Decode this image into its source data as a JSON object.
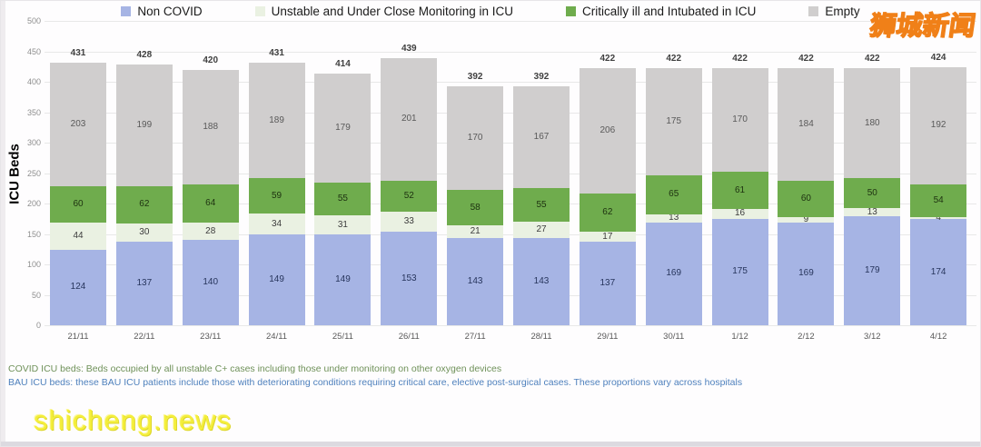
{
  "legend": {
    "items": [
      {
        "label": "Non COVID"
      },
      {
        "label": "Unstable and Under Close Monitoring in ICU"
      },
      {
        "label": "Critically ill and Intubated in ICU"
      },
      {
        "label": "Empty"
      }
    ]
  },
  "footer": {
    "line1": "COVID ICU beds: Beds occupied by all unstable C+ cases including those under monitoring on other oxygen devices",
    "line2": "BAU ICU beds: these BAU ICU patients include those with deteriorating conditions requiring critical care, elective post-surgical cases. These proportions vary across hospitals"
  },
  "watermarks": {
    "top_right": "狮城新闻",
    "bottom_left": "shicheng.news"
  },
  "chart_data": {
    "type": "bar",
    "stacked": true,
    "title": "",
    "xlabel": "",
    "ylabel": "ICU Beds",
    "ylim": [
      0,
      500
    ],
    "yticks": [
      0,
      50,
      100,
      150,
      200,
      250,
      300,
      350,
      400,
      450,
      500
    ],
    "grid": true,
    "legend_position": "top",
    "categories": [
      "21/11",
      "22/11",
      "23/11",
      "24/11",
      "25/11",
      "26/11",
      "27/11",
      "28/11",
      "29/11",
      "30/11",
      "1/12",
      "2/12",
      "3/12",
      "4/12"
    ],
    "series": [
      {
        "name": "Non COVID",
        "color": "#a6b4e4",
        "label_color": "#27355c",
        "values": [
          124,
          137,
          140,
          149,
          149,
          153,
          143,
          143,
          137,
          169,
          175,
          169,
          179,
          174
        ]
      },
      {
        "name": "Unstable and Under Close Monitoring in ICU",
        "color": "#eaf1e2",
        "label_color": "#3c3c3c",
        "values": [
          44,
          30,
          28,
          34,
          31,
          33,
          21,
          27,
          17,
          13,
          16,
          9,
          13,
          4
        ]
      },
      {
        "name": "Critically ill and Intubated in ICU",
        "color": "#6fac4d",
        "label_color": "#1d3110",
        "values": [
          60,
          62,
          64,
          59,
          55,
          52,
          58,
          55,
          62,
          65,
          61,
          60,
          50,
          54
        ]
      },
      {
        "name": "Empty",
        "color": "#d0cece",
        "label_color": "#595959",
        "values": [
          203,
          199,
          188,
          189,
          179,
          201,
          170,
          167,
          206,
          175,
          170,
          184,
          180,
          192
        ]
      }
    ],
    "totals": [
      431,
      428,
      420,
      431,
      414,
      439,
      392,
      392,
      422,
      422,
      422,
      422,
      422,
      424
    ]
  }
}
